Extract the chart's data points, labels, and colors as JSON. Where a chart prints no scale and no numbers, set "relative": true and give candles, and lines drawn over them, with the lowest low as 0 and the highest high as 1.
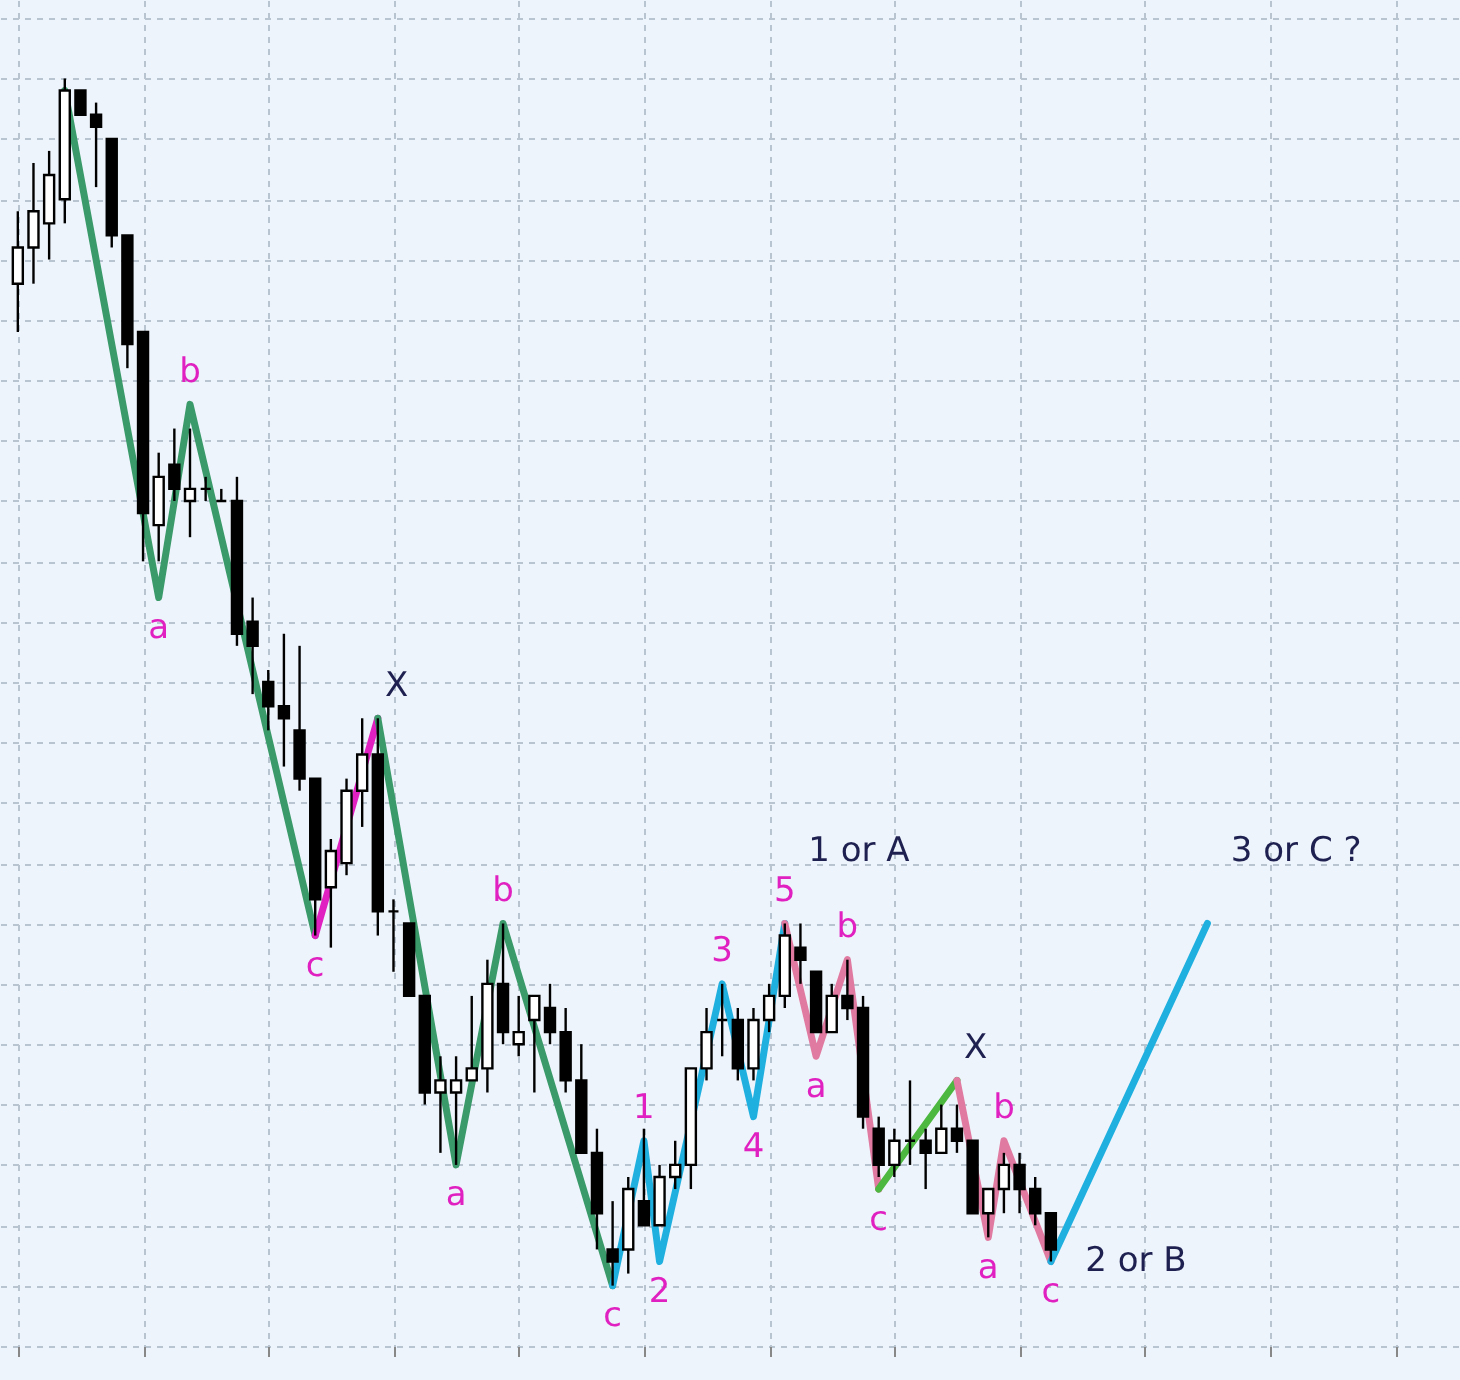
{
  "chart_data": {
    "type": "candlestick",
    "relative": true,
    "grid": true,
    "categories": [
      null,
      null,
      null,
      null,
      null,
      null,
      null,
      null,
      null,
      null,
      null,
      null,
      null,
      null,
      null,
      null,
      null,
      null,
      null,
      null,
      null,
      null,
      null,
      null,
      null,
      null,
      null,
      null,
      null,
      null,
      null,
      null,
      null,
      null,
      null,
      null,
      null,
      null,
      null,
      null,
      null,
      null,
      null,
      null,
      null,
      null,
      null,
      null,
      null,
      null,
      null,
      null,
      null,
      null,
      null,
      null,
      null,
      null,
      null,
      null,
      null,
      null,
      null,
      null,
      null,
      null,
      null,
      null,
      null,
      null,
      null,
      null,
      null,
      null,
      null,
      null,
      null,
      null,
      null,
      null,
      null,
      null,
      null,
      null,
      null,
      null,
      null,
      null,
      null,
      null,
      null,
      null
    ],
    "ohlc": [
      [
        0.83,
        0.89,
        0.79,
        0.86
      ],
      [
        0.86,
        0.93,
        0.83,
        0.89
      ],
      [
        0.88,
        0.94,
        0.85,
        0.92
      ],
      [
        0.9,
        1.0,
        0.88,
        0.99
      ],
      [
        0.99,
        0.99,
        0.97,
        0.97
      ],
      [
        0.97,
        0.98,
        0.91,
        0.96
      ],
      [
        0.95,
        0.95,
        0.86,
        0.87
      ],
      [
        0.87,
        0.87,
        0.76,
        0.78
      ],
      [
        0.79,
        0.79,
        0.6,
        0.64
      ],
      [
        0.63,
        0.69,
        0.6,
        0.67
      ],
      [
        0.68,
        0.71,
        0.65,
        0.66
      ],
      [
        0.65,
        0.71,
        0.62,
        0.66
      ],
      [
        0.66,
        0.67,
        0.65,
        0.66
      ],
      [
        0.65,
        0.66,
        0.65,
        0.65
      ],
      [
        0.65,
        0.67,
        0.53,
        0.54
      ],
      [
        0.55,
        0.57,
        0.49,
        0.53
      ],
      [
        0.5,
        0.51,
        0.46,
        0.48
      ],
      [
        0.48,
        0.54,
        0.43,
        0.47
      ],
      [
        0.46,
        0.53,
        0.41,
        0.42
      ],
      [
        0.42,
        0.42,
        0.29,
        0.32
      ],
      [
        0.33,
        0.37,
        0.28,
        0.36
      ],
      [
        0.35,
        0.42,
        0.34,
        0.41
      ],
      [
        0.41,
        0.47,
        0.38,
        0.44
      ],
      [
        0.44,
        0.47,
        0.29,
        0.31
      ],
      [
        0.31,
        0.32,
        0.26,
        0.31
      ],
      [
        0.3,
        0.3,
        0.24,
        0.24
      ],
      [
        0.24,
        0.24,
        0.15,
        0.16
      ],
      [
        0.16,
        0.19,
        0.11,
        0.17
      ],
      [
        0.16,
        0.19,
        0.1,
        0.17
      ],
      [
        0.17,
        0.24,
        0.17,
        0.18
      ],
      [
        0.18,
        0.27,
        0.16,
        0.25
      ],
      [
        0.25,
        0.3,
        0.2,
        0.21
      ],
      [
        0.2,
        0.24,
        0.19,
        0.21
      ],
      [
        0.22,
        0.24,
        0.16,
        0.24
      ],
      [
        0.23,
        0.25,
        0.2,
        0.21
      ],
      [
        0.21,
        0.23,
        0.16,
        0.17
      ],
      [
        0.17,
        0.2,
        0.11,
        0.11
      ],
      [
        0.11,
        0.13,
        0.03,
        0.06
      ],
      [
        0.03,
        0.07,
        0.0,
        0.02
      ],
      [
        0.03,
        0.09,
        0.01,
        0.08
      ],
      [
        0.07,
        0.13,
        0.05,
        0.05
      ],
      [
        0.05,
        0.1,
        0.05,
        0.09
      ],
      [
        0.09,
        0.12,
        0.08,
        0.1
      ],
      [
        0.1,
        0.18,
        0.08,
        0.18
      ],
      [
        0.18,
        0.23,
        0.17,
        0.21
      ],
      [
        0.22,
        0.25,
        0.19,
        0.22
      ],
      [
        0.22,
        0.23,
        0.17,
        0.18
      ],
      [
        0.18,
        0.23,
        0.17,
        0.22
      ],
      [
        0.22,
        0.25,
        0.21,
        0.24
      ],
      [
        0.24,
        0.3,
        0.23,
        0.29
      ],
      [
        0.28,
        0.3,
        0.25,
        0.27
      ],
      [
        0.26,
        0.26,
        0.21,
        0.21
      ],
      [
        0.21,
        0.25,
        0.21,
        0.24
      ],
      [
        0.24,
        0.27,
        0.22,
        0.23
      ],
      [
        0.23,
        0.24,
        0.13,
        0.14
      ],
      [
        0.13,
        0.14,
        0.09,
        0.1
      ],
      [
        0.1,
        0.13,
        0.09,
        0.12
      ],
      [
        0.12,
        0.17,
        0.1,
        0.12
      ],
      [
        0.12,
        0.13,
        0.08,
        0.11
      ],
      [
        0.11,
        0.15,
        0.11,
        0.13
      ],
      [
        0.13,
        0.15,
        0.11,
        0.12
      ],
      [
        0.12,
        0.12,
        0.06,
        0.06
      ],
      [
        0.06,
        0.08,
        0.04,
        0.08
      ],
      [
        0.08,
        0.11,
        0.06,
        0.1
      ],
      [
        0.1,
        0.11,
        0.06,
        0.08
      ],
      [
        0.08,
        0.09,
        0.05,
        0.06
      ],
      [
        0.06,
        0.06,
        0.02,
        0.03
      ],
      null,
      null,
      null,
      null,
      null,
      null,
      null,
      null,
      null,
      null,
      null,
      null,
      null,
      null,
      null,
      null,
      null,
      null,
      null,
      null,
      null,
      null,
      null,
      null,
      null
    ],
    "series": [
      {
        "type": "line",
        "color": "#3a9a6a",
        "values": [
          null,
          null,
          null,
          0.99,
          null,
          null,
          null,
          null,
          null,
          0.57,
          null,
          0.73,
          null,
          null,
          null,
          null,
          null,
          null,
          null,
          0.29,
          null,
          null,
          null,
          null,
          null,
          null,
          null,
          null,
          null,
          null,
          null,
          null,
          null,
          null,
          null,
          null,
          null,
          null,
          null,
          null,
          null,
          null,
          null,
          null,
          null,
          null,
          null,
          null,
          null,
          null,
          null,
          null,
          null,
          null,
          null,
          null,
          null,
          null,
          null,
          null,
          null,
          null,
          null,
          null,
          null,
          null,
          null,
          null,
          null,
          null,
          null,
          null,
          null,
          null,
          null,
          null,
          null,
          null,
          null,
          null,
          null,
          null,
          null,
          null,
          null,
          null,
          null,
          null,
          null,
          null,
          null,
          null
        ]
      },
      {
        "type": "line",
        "color": "#e020c0",
        "values": [
          null,
          null,
          null,
          null,
          null,
          null,
          null,
          null,
          null,
          null,
          null,
          null,
          null,
          null,
          null,
          null,
          null,
          null,
          null,
          0.29,
          null,
          null,
          null,
          0.47,
          null,
          null,
          null,
          null,
          null,
          null,
          null,
          null,
          null,
          null,
          null,
          null,
          null,
          null,
          null,
          null,
          null,
          null,
          null,
          null,
          null,
          null,
          null,
          null,
          null,
          null,
          null,
          null,
          null,
          null,
          null,
          null,
          null,
          null,
          null,
          null,
          null,
          null,
          null,
          null,
          null,
          null,
          null,
          null,
          null,
          null,
          null,
          null,
          null,
          null,
          null,
          null,
          null,
          null,
          null,
          null,
          null,
          null,
          null,
          null,
          null,
          null,
          null,
          null,
          null,
          null,
          null,
          null
        ]
      },
      {
        "type": "line",
        "color": "#3a9a6a",
        "values": [
          null,
          null,
          null,
          null,
          null,
          null,
          null,
          null,
          null,
          null,
          null,
          null,
          null,
          null,
          null,
          null,
          null,
          null,
          null,
          null,
          null,
          null,
          null,
          0.47,
          null,
          null,
          null,
          null,
          0.1,
          null,
          null,
          0.3,
          null,
          null,
          null,
          null,
          null,
          null,
          0.0,
          null,
          null,
          null,
          null,
          null,
          null,
          null,
          null,
          null,
          null,
          null,
          null,
          null,
          null,
          null,
          null,
          null,
          null,
          null,
          null,
          null,
          null,
          null,
          null,
          null,
          null,
          null,
          null,
          null,
          null,
          null,
          null,
          null,
          null,
          null,
          null,
          null,
          null,
          null,
          null,
          null,
          null,
          null,
          null,
          null,
          null,
          null,
          null,
          null,
          null,
          null,
          null,
          null
        ]
      },
      {
        "type": "line",
        "color": "#20b0e0",
        "values": [
          null,
          null,
          null,
          null,
          null,
          null,
          null,
          null,
          null,
          null,
          null,
          null,
          null,
          null,
          null,
          null,
          null,
          null,
          null,
          null,
          null,
          null,
          null,
          null,
          null,
          null,
          null,
          null,
          null,
          null,
          null,
          null,
          null,
          null,
          null,
          null,
          null,
          null,
          0.0,
          null,
          0.12,
          0.02,
          null,
          null,
          null,
          0.25,
          null,
          0.14,
          null,
          0.3,
          null,
          null,
          null,
          null,
          null,
          null,
          null,
          null,
          null,
          null,
          null,
          null,
          null,
          null,
          null,
          null,
          null,
          null,
          null,
          null,
          null,
          null,
          null,
          null,
          null,
          null,
          null,
          null,
          null,
          null,
          null,
          null,
          null,
          null,
          null,
          null,
          null,
          null,
          null,
          null,
          null,
          null
        ]
      },
      {
        "type": "line",
        "color": "#e07aa0",
        "values": [
          null,
          null,
          null,
          null,
          null,
          null,
          null,
          null,
          null,
          null,
          null,
          null,
          null,
          null,
          null,
          null,
          null,
          null,
          null,
          null,
          null,
          null,
          null,
          null,
          null,
          null,
          null,
          null,
          null,
          null,
          null,
          null,
          null,
          null,
          null,
          null,
          null,
          null,
          null,
          null,
          null,
          null,
          null,
          null,
          null,
          null,
          null,
          null,
          null,
          0.3,
          null,
          0.19,
          null,
          0.27,
          null,
          0.08,
          null,
          null,
          null,
          null,
          null,
          null,
          null,
          null,
          null,
          null,
          null,
          null,
          null,
          null,
          null,
          null,
          null,
          null,
          null,
          null,
          null,
          null,
          null,
          null,
          null,
          null,
          null,
          null,
          null,
          null,
          null,
          null,
          null,
          null,
          null,
          null
        ]
      },
      {
        "type": "line",
        "color": "#4cb840",
        "values": [
          null,
          null,
          null,
          null,
          null,
          null,
          null,
          null,
          null,
          null,
          null,
          null,
          null,
          null,
          null,
          null,
          null,
          null,
          null,
          null,
          null,
          null,
          null,
          null,
          null,
          null,
          null,
          null,
          null,
          null,
          null,
          null,
          null,
          null,
          null,
          null,
          null,
          null,
          null,
          null,
          null,
          null,
          null,
          null,
          null,
          null,
          null,
          null,
          null,
          null,
          null,
          null,
          null,
          null,
          null,
          0.08,
          null,
          null,
          null,
          null,
          0.17,
          null,
          null,
          null,
          null,
          null,
          null,
          null,
          null,
          null,
          null,
          null,
          null,
          null,
          null,
          null,
          null,
          null,
          null,
          null,
          null,
          null,
          null,
          null,
          null,
          null,
          null,
          null,
          null,
          null,
          null,
          null
        ]
      },
      {
        "type": "line",
        "color": "#e07aa0",
        "values": [
          null,
          null,
          null,
          null,
          null,
          null,
          null,
          null,
          null,
          null,
          null,
          null,
          null,
          null,
          null,
          null,
          null,
          null,
          null,
          null,
          null,
          null,
          null,
          null,
          null,
          null,
          null,
          null,
          null,
          null,
          null,
          null,
          null,
          null,
          null,
          null,
          null,
          null,
          null,
          null,
          null,
          null,
          null,
          null,
          null,
          null,
          null,
          null,
          null,
          null,
          null,
          null,
          null,
          null,
          null,
          null,
          null,
          null,
          null,
          null,
          0.17,
          null,
          0.04,
          0.12,
          null,
          null,
          0.02,
          null,
          null,
          null,
          null,
          null,
          null,
          null,
          null,
          null,
          null,
          null,
          null,
          null,
          null,
          null,
          null,
          null,
          null,
          null,
          null,
          null,
          null,
          null,
          null,
          null
        ]
      },
      {
        "type": "line",
        "color": "#20b0e0",
        "values": [
          null,
          null,
          null,
          null,
          null,
          null,
          null,
          null,
          null,
          null,
          null,
          null,
          null,
          null,
          null,
          null,
          null,
          null,
          null,
          null,
          null,
          null,
          null,
          null,
          null,
          null,
          null,
          null,
          null,
          null,
          null,
          null,
          null,
          null,
          null,
          null,
          null,
          null,
          null,
          null,
          null,
          null,
          null,
          null,
          null,
          null,
          null,
          null,
          null,
          null,
          null,
          null,
          null,
          null,
          null,
          null,
          null,
          null,
          null,
          null,
          null,
          null,
          null,
          null,
          null,
          null,
          0.02,
          null,
          null,
          null,
          null,
          null,
          null,
          null,
          null,
          null,
          0.3,
          null,
          null,
          null,
          null,
          null,
          null,
          null,
          null,
          null,
          null,
          null,
          null,
          null,
          null,
          null
        ]
      }
    ],
    "annotations": [
      "a",
      "b",
      "c",
      "X",
      "a",
      "b",
      "c",
      "1",
      "2",
      "3",
      "4",
      "5",
      "1 or A",
      "a",
      "b",
      "c",
      "X",
      "a",
      "b",
      "c",
      "2 or B",
      "3 or C  ?"
    ]
  }
}
